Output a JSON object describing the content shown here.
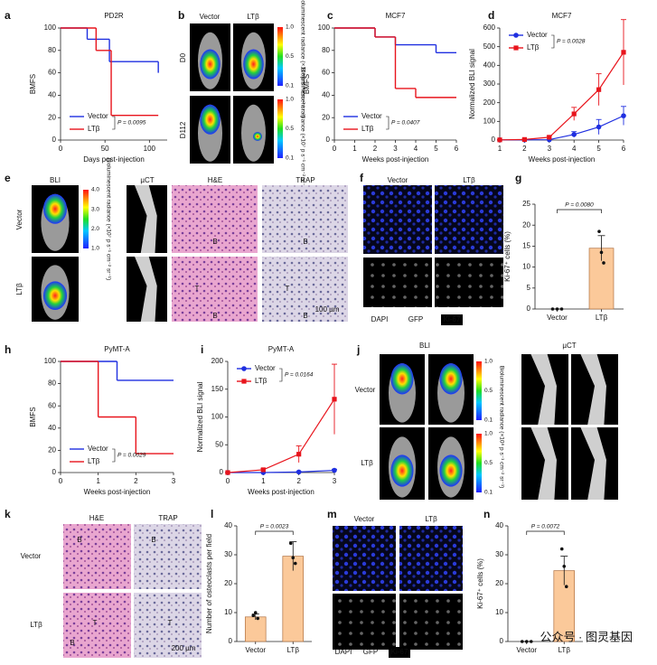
{
  "chart_data": [
    {
      "panel": "a",
      "type": "step",
      "title": "PD2R",
      "xlabel": "Days post-injection",
      "ylabel": "BMFS",
      "xlim": [
        0,
        120
      ],
      "xticks": [
        0,
        50,
        100
      ],
      "ylim": [
        0,
        100
      ],
      "yticks": [
        0,
        20,
        40,
        60,
        80,
        100
      ],
      "legend": "lower left",
      "annotation": "P = 0.0095",
      "series": [
        {
          "name": "Vector",
          "color": "#1f2fe0",
          "x": [
            0,
            30,
            55,
            110
          ],
          "values": [
            100,
            90,
            70,
            60
          ]
        },
        {
          "name": "LTβ",
          "color": "#e8141c",
          "x": [
            0,
            40,
            57,
            110
          ],
          "values": [
            100,
            80,
            22,
            22
          ]
        }
      ]
    },
    {
      "panel": "c",
      "type": "step",
      "title": "MCF7",
      "xlabel": "Weeks post-injection",
      "ylabel": "BMFS",
      "xlim": [
        0,
        6
      ],
      "xticks": [
        0,
        1,
        2,
        3,
        4,
        5,
        6
      ],
      "ylim": [
        0,
        100
      ],
      "yticks": [
        0,
        20,
        40,
        60,
        80,
        100
      ],
      "legend": "lower left",
      "annotation": "P = 0.0407",
      "series": [
        {
          "name": "Vector",
          "color": "#1f2fe0",
          "x": [
            0,
            2,
            3,
            5,
            6
          ],
          "values": [
            100,
            92,
            85,
            78,
            78
          ]
        },
        {
          "name": "LTβ",
          "color": "#e8141c",
          "x": [
            0,
            2,
            3,
            4,
            6
          ],
          "values": [
            100,
            92,
            46,
            38,
            38
          ]
        }
      ]
    },
    {
      "panel": "d",
      "type": "line",
      "title": "MCF7",
      "xlabel": "Weeks post-injection",
      "ylabel": "Normalized BLI signal",
      "x": [
        1,
        2,
        3,
        4,
        5,
        6
      ],
      "xlim": [
        1,
        6
      ],
      "xticks": [
        1,
        2,
        3,
        4,
        5,
        6
      ],
      "ylim": [
        0,
        600
      ],
      "yticks": [
        0,
        100,
        200,
        300,
        400,
        500,
        600
      ],
      "legend": "upper left",
      "annotation": "P = 0.0028",
      "series": [
        {
          "name": "Vector",
          "color": "#1f2fe0",
          "marker": "circle",
          "values": [
            1,
            1,
            2,
            30,
            70,
            130
          ],
          "errors": [
            1,
            1,
            2,
            15,
            40,
            50
          ]
        },
        {
          "name": "LTβ",
          "color": "#e8141c",
          "marker": "square",
          "values": [
            1,
            3,
            15,
            140,
            270,
            470
          ],
          "errors": [
            1,
            2,
            8,
            35,
            85,
            175
          ]
        }
      ]
    },
    {
      "panel": "g",
      "type": "bar",
      "ylabel": "Ki-67⁺ cells (%)",
      "categories": [
        "Vector",
        "LTβ"
      ],
      "values": [
        0,
        14.5
      ],
      "errors": [
        0,
        3
      ],
      "points": [
        [
          0,
          0,
          0
        ],
        [
          18.5,
          13.5,
          11
        ]
      ],
      "color": "#fbc99a",
      "ylim": [
        0,
        25
      ],
      "yticks": [
        0,
        5,
        10,
        15,
        20,
        25
      ],
      "annotation": "P = 0.0080"
    },
    {
      "panel": "h",
      "type": "step",
      "title": "PyMT-A",
      "xlabel": "Weeks post-injection",
      "ylabel": "BMFS",
      "xlim": [
        0,
        3
      ],
      "xticks": [
        0,
        1,
        2,
        3
      ],
      "ylim": [
        0,
        100
      ],
      "yticks": [
        0,
        20,
        40,
        60,
        80,
        100
      ],
      "legend": "lower left",
      "annotation": "P = 0.0029",
      "series": [
        {
          "name": "Vector",
          "color": "#1f2fe0",
          "x": [
            0,
            1.5,
            3
          ],
          "values": [
            100,
            83,
            83
          ]
        },
        {
          "name": "LTβ",
          "color": "#e8141c",
          "x": [
            0,
            1,
            2,
            3
          ],
          "values": [
            100,
            50,
            17,
            17
          ]
        }
      ]
    },
    {
      "panel": "i",
      "type": "line",
      "title": "PyMT-A",
      "xlabel": "Weeks post-injection",
      "ylabel": "Normalized BLI signal",
      "x": [
        0,
        1,
        2,
        3
      ],
      "xlim": [
        0,
        3
      ],
      "xticks": [
        0,
        1,
        2,
        3
      ],
      "ylim": [
        0,
        200
      ],
      "yticks": [
        0,
        50,
        100,
        150,
        200
      ],
      "legend": "upper left",
      "annotation": "P = 0.0164",
      "series": [
        {
          "name": "Vector",
          "color": "#1f2fe0",
          "marker": "circle",
          "values": [
            0,
            0,
            1,
            4
          ],
          "errors": [
            0,
            0,
            1,
            2
          ]
        },
        {
          "name": "LTβ",
          "color": "#e8141c",
          "marker": "square",
          "values": [
            0,
            5,
            33,
            132
          ],
          "errors": [
            0,
            2,
            15,
            63
          ]
        }
      ]
    },
    {
      "panel": "l",
      "type": "bar",
      "ylabel": "Number of osteoclasts per field",
      "categories": [
        "Vector",
        "LTβ"
      ],
      "values": [
        8.5,
        29.5
      ],
      "errors": [
        1,
        5
      ],
      "points": [
        [
          9,
          10,
          8
        ],
        [
          34,
          29,
          27
        ]
      ],
      "color": "#fbc99a",
      "ylim": [
        0,
        40
      ],
      "yticks": [
        0,
        10,
        20,
        30,
        40
      ],
      "annotation": "P = 0.0023"
    },
    {
      "panel": "n",
      "type": "bar",
      "ylabel": "Ki-67⁺ cells (%)",
      "categories": [
        "Vector",
        "LTβ"
      ],
      "values": [
        0,
        24.5
      ],
      "errors": [
        0,
        5
      ],
      "points": [
        [
          0,
          0,
          0
        ],
        [
          32,
          26,
          19
        ]
      ],
      "color": "#fbc99a",
      "ylim": [
        0,
        40
      ],
      "yticks": [
        0,
        10,
        20,
        30,
        40
      ],
      "annotation": "P = 0.0072"
    }
  ],
  "image_panels": [
    {
      "panel": "b",
      "labels": [
        "Vector",
        "LTβ",
        "D0",
        "D112"
      ],
      "colorbars": [
        {
          "ticks": [
            "1.0",
            "0.5",
            "0.1"
          ],
          "title": "Bioluminescent radiance (×10⁹ p s⁻¹ cm⁻² sr⁻¹)"
        },
        {
          "ticks": [
            "1.0",
            "0.5",
            "0.1"
          ],
          "title": "Bioluminescent radiance (×10⁷ p s⁻¹ cm⁻² sr⁻¹)"
        }
      ]
    },
    {
      "panel": "e",
      "labels": [
        "BLI",
        "µCT",
        "H&E",
        "TRAP",
        "Vector",
        "LTβ",
        "B",
        "B",
        "T",
        "T",
        "B",
        "B",
        "100 µm"
      ],
      "colorbars": [
        {
          "ticks": [
            "4.0",
            "3.0",
            "2.0",
            "1.0"
          ],
          "title": "Bioluminescent radiance (×10⁷ p s⁻¹ cm⁻² sr⁻¹)"
        }
      ]
    },
    {
      "panel": "f",
      "labels": [
        "Vector",
        "LTβ",
        "DAPI",
        "GFP",
        "Ki-67"
      ],
      "colorbars": []
    },
    {
      "panel": "j",
      "labels": [
        "BLI",
        "µCT",
        "Vector",
        "LTβ"
      ],
      "colorbars": [
        {
          "ticks": [
            "1.0",
            "0.5",
            "0.1"
          ],
          "title": "Bioluminescent radiance (×10⁸ p s⁻¹ cm⁻² sr⁻¹)"
        },
        {
          "ticks": [
            "1.0",
            "0.5",
            "0.1"
          ]
        }
      ]
    },
    {
      "panel": "k",
      "labels": [
        "H&E",
        "TRAP",
        "Vector",
        "LTβ",
        "B",
        "B",
        "T",
        "B",
        "T",
        "200 µm"
      ],
      "colorbars": []
    },
    {
      "panel": "m",
      "labels": [
        "Vector",
        "LTβ",
        "DAPI",
        "GFP",
        "Ki-67"
      ],
      "colorbars": []
    }
  ],
  "watermark": "公众号 · 图灵基因"
}
